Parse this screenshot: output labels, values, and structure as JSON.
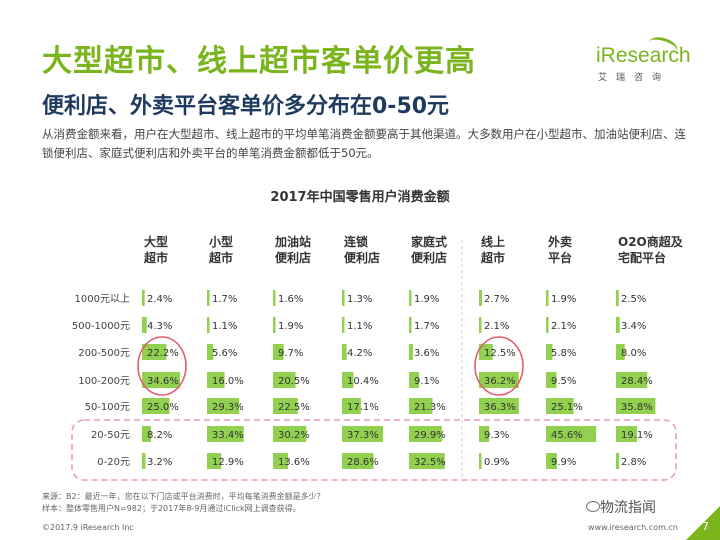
{
  "header": {
    "title": "大型超市、线上超市客单价更高",
    "subtitle": "便利店、外卖平台客单价多分布在0-50元",
    "description": "从消费金额来看，用户在大型超市、线上超市的平均单笔消费金额要高于其他渠道。大多数用户在小型超市、加油站便利店、连锁便利店、家庭式便利店和外卖平台的单笔消费金额都低于50元。"
  },
  "logo": {
    "word": "iResearch",
    "sub": "艾瑞咨询"
  },
  "colors": {
    "accent": "#7ab51d",
    "bar": "#92d050",
    "highlight_box": "#e8a0a8",
    "title_navy": "#1f3a5f"
  },
  "chart_data": {
    "type": "table",
    "title": "2017年中国零售用户消费金额",
    "columns": [
      "大型\n超市",
      "小型\n超市",
      "加油站\n便利店",
      "连锁\n便利店",
      "家庭式\n便利店",
      "线上\n超市",
      "外卖\n平台",
      "O2O商超及\n宅配平台"
    ],
    "rows": [
      "1000元以上",
      "500-1000元",
      "200-500元",
      "100-200元",
      "50-100元",
      "20-50元",
      "0-20元"
    ],
    "values": [
      [
        2.4,
        1.7,
        1.6,
        1.3,
        1.9,
        2.7,
        1.9,
        2.5
      ],
      [
        4.3,
        1.1,
        1.9,
        1.1,
        1.7,
        2.1,
        2.1,
        3.4
      ],
      [
        22.2,
        5.6,
        9.7,
        4.2,
        3.6,
        12.5,
        5.8,
        8.0
      ],
      [
        34.6,
        16.0,
        20.5,
        10.4,
        9.1,
        36.2,
        9.5,
        28.4
      ],
      [
        25.0,
        29.3,
        22.5,
        17.1,
        21.3,
        36.3,
        25.1,
        35.8
      ],
      [
        8.2,
        33.4,
        30.2,
        37.3,
        29.9,
        9.3,
        45.6,
        19.1
      ],
      [
        3.2,
        12.9,
        13.6,
        28.6,
        32.5,
        0.9,
        9.9,
        2.8
      ]
    ],
    "value_unit": "%",
    "highlighted_rows": [
      "20-50元",
      "0-20元"
    ],
    "circled": [
      {
        "column": "大型\n超市",
        "rows": [
          "200-500元",
          "100-200元"
        ]
      },
      {
        "column": "线上\n超市",
        "rows": [
          "200-500元",
          "100-200元"
        ]
      }
    ]
  },
  "footer": {
    "source": "来源：B2：最近一年，您在以下门店或平台消费时，平均每笔消费金额是多少？",
    "sample": "样本：整体零售用户N=982；于2017年8-9月通过iClick网上调查获得。",
    "copyright": "©2017.9 iResearch Inc",
    "website": "www.iresearch.com.cn",
    "page_number": "7",
    "wechat_label": "物流指闻"
  }
}
